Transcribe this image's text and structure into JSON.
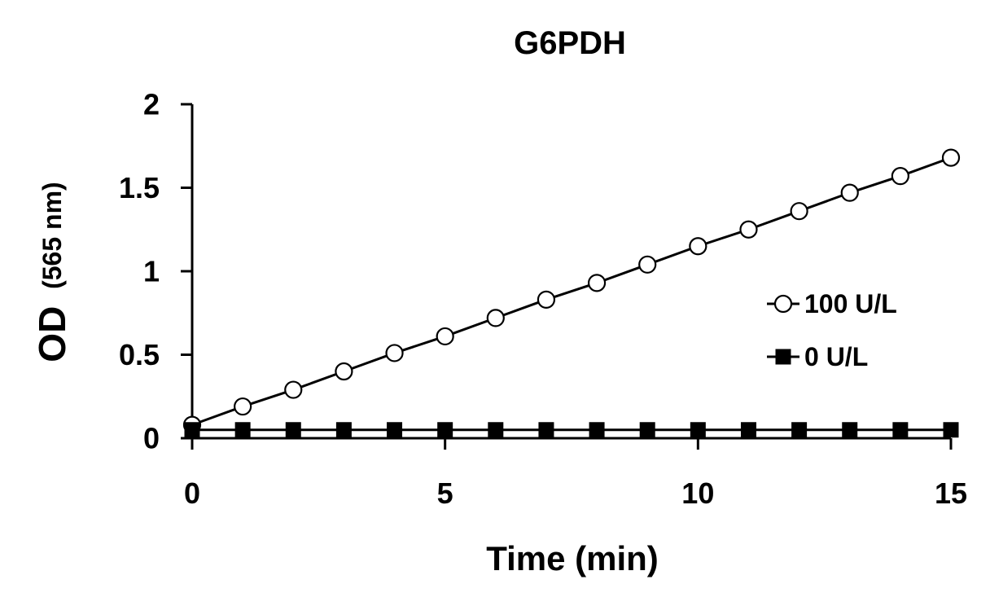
{
  "chart_data": {
    "type": "line",
    "title": "G6PDH",
    "xlabel": "Time (min)",
    "ylabel_main": "OD",
    "ylabel_unit": "(565 nm)",
    "xlim": [
      0,
      15
    ],
    "ylim": [
      0,
      2
    ],
    "xticks": [
      0,
      5,
      10,
      15
    ],
    "yticks": [
      0,
      0.5,
      1,
      1.5,
      2
    ],
    "xtick_labels": [
      "0",
      "5",
      "10",
      "15"
    ],
    "ytick_labels": [
      "0",
      "0.5",
      "1",
      "1.5",
      "2"
    ],
    "grid": false,
    "legend_position": "right",
    "x": [
      0,
      1,
      2,
      3,
      4,
      5,
      6,
      7,
      8,
      9,
      10,
      11,
      12,
      13,
      14,
      15
    ],
    "series": [
      {
        "name": "100 U/L",
        "marker": "open-circle",
        "values": [
          0.08,
          0.19,
          0.29,
          0.4,
          0.51,
          0.61,
          0.72,
          0.83,
          0.93,
          1.04,
          1.15,
          1.25,
          1.36,
          1.47,
          1.57,
          1.68
        ]
      },
      {
        "name": "0 U/L",
        "marker": "filled-square",
        "values": [
          0.05,
          0.05,
          0.05,
          0.05,
          0.05,
          0.05,
          0.05,
          0.05,
          0.05,
          0.05,
          0.05,
          0.05,
          0.05,
          0.05,
          0.05,
          0.05
        ]
      }
    ]
  },
  "colors": {
    "line": "#000000",
    "background": "#ffffff"
  }
}
